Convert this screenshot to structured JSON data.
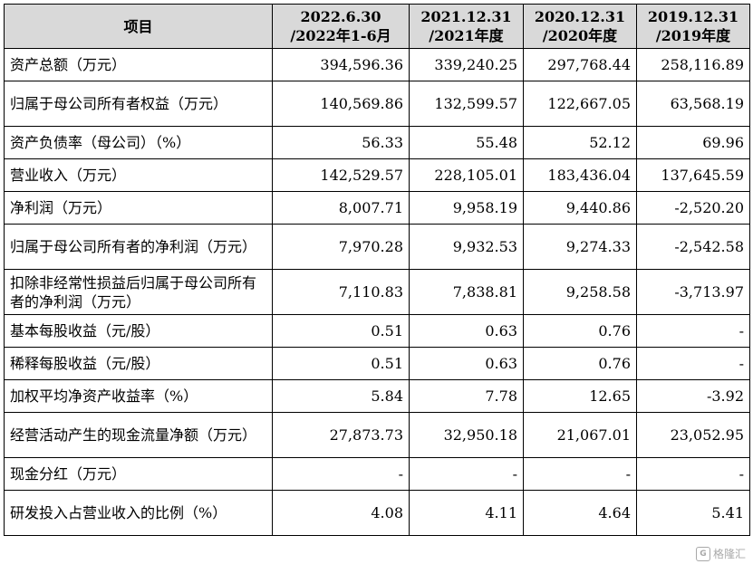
{
  "table": {
    "header": {
      "item": "项目",
      "periods": [
        {
          "line1": "2022.6.30",
          "line2": "/2022年1-6月"
        },
        {
          "line1": "2021.12.31",
          "line2": "/2021年度"
        },
        {
          "line1": "2020.12.31",
          "line2": "/2020年度"
        },
        {
          "line1": "2019.12.31",
          "line2": "/2019年度"
        }
      ]
    },
    "rows": [
      {
        "label": "资产总额（万元）",
        "values": [
          "394,596.36",
          "339,240.25",
          "297,768.44",
          "258,116.89"
        ]
      },
      {
        "label": "归属于母公司所有者权益（万元）",
        "values": [
          "140,569.86",
          "132,599.57",
          "122,667.05",
          "63,568.19"
        ]
      },
      {
        "label": "资产负债率（母公司）（%）",
        "values": [
          "56.33",
          "55.48",
          "52.12",
          "69.96"
        ]
      },
      {
        "label": "营业收入（万元）",
        "values": [
          "142,529.57",
          "228,105.01",
          "183,436.04",
          "137,645.59"
        ]
      },
      {
        "label": "净利润（万元）",
        "values": [
          "8,007.71",
          "9,958.19",
          "9,440.86",
          "-2,520.20"
        ]
      },
      {
        "label": "归属于母公司所有者的净利润（万元）",
        "values": [
          "7,970.28",
          "9,932.53",
          "9,274.33",
          "-2,542.58"
        ]
      },
      {
        "label": "扣除非经常性损益后归属于母公司所有者的净利润（万元）",
        "values": [
          "7,110.83",
          "7,838.81",
          "9,258.58",
          "-3,713.97"
        ]
      },
      {
        "label": "基本每股收益（元/股）",
        "values": [
          "0.51",
          "0.63",
          "0.76",
          "-"
        ]
      },
      {
        "label": "稀释每股收益（元/股）",
        "values": [
          "0.51",
          "0.63",
          "0.76",
          "-"
        ]
      },
      {
        "label": "加权平均净资产收益率（%）",
        "values": [
          "5.84",
          "7.78",
          "12.65",
          "-3.92"
        ]
      },
      {
        "label": "经营活动产生的现金流量净额（万元）",
        "values": [
          "27,873.73",
          "32,950.18",
          "21,067.01",
          "23,052.95"
        ]
      },
      {
        "label": "现金分红（万元）",
        "values": [
          "-",
          "-",
          "-",
          "-"
        ]
      },
      {
        "label": "研发投入占营业收入的比例（%）",
        "values": [
          "4.08",
          "4.11",
          "4.64",
          "5.41"
        ]
      }
    ]
  },
  "watermark": {
    "logo_glyph": "G",
    "text": "格隆汇"
  }
}
